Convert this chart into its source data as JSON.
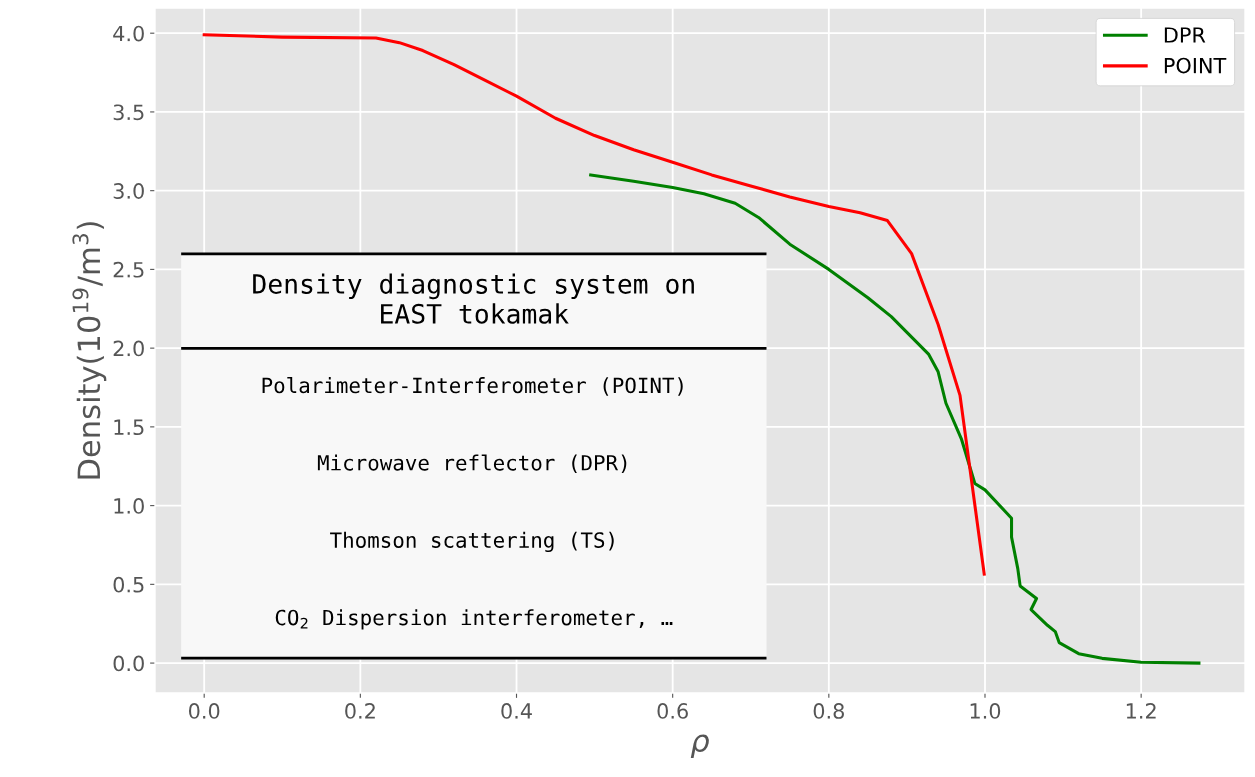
{
  "chart_data": {
    "type": "line",
    "xlabel": "ρ",
    "ylabel": "Density(10$^{19}$/m$^{3}$)",
    "xlim": [
      -0.063,
      1.333
    ],
    "ylim": [
      -0.19,
      4.16
    ],
    "xticks": [
      {
        "value": 0,
        "label": "0.0"
      },
      0.2,
      0.4,
      0.6,
      0.8,
      {
        "value": 1,
        "label": "1.0"
      },
      1.2
    ],
    "yticks": [
      {
        "value": 0,
        "label": "0.0"
      },
      0.5,
      {
        "value": 1,
        "label": "1.0"
      },
      1.5,
      {
        "value": 2,
        "label": "2.0"
      },
      2.5,
      {
        "value": 3,
        "label": "3.0"
      },
      3.5,
      {
        "value": 4,
        "label": "4.0"
      }
    ],
    "grid": true,
    "legend": "top right",
    "marker": "none",
    "line_style": "solid",
    "series": [
      {
        "name": "DPR",
        "color": "#008000",
        "x": [
          0.495,
          0.55,
          0.6,
          0.64,
          0.68,
          0.71,
          0.75,
          0.8,
          0.85,
          0.88,
          0.9,
          0.928,
          0.94,
          0.95,
          0.97,
          0.987,
          1.0,
          1.034,
          1.034,
          1.042,
          1.045,
          1.066,
          1.059,
          1.08,
          1.09,
          1.095,
          1.12,
          1.15,
          1.2,
          1.274
        ],
        "values": [
          3.1,
          3.06,
          3.02,
          2.98,
          2.92,
          2.83,
          2.66,
          2.5,
          2.32,
          2.2,
          2.1,
          1.96,
          1.85,
          1.65,
          1.42,
          1.14,
          1.1,
          0.92,
          0.8,
          0.6,
          0.49,
          0.41,
          0.34,
          0.24,
          0.2,
          0.13,
          0.06,
          0.03,
          0.005,
          0.0
        ]
      },
      {
        "name": "POINT",
        "color": "#ff0000",
        "x": [
          0.0,
          0.1,
          0.22,
          0.25,
          0.28,
          0.32,
          0.36,
          0.4,
          0.45,
          0.5,
          0.55,
          0.6,
          0.65,
          0.7,
          0.75,
          0.8,
          0.84,
          0.875,
          0.906,
          0.94,
          0.968,
          0.999
        ],
        "values": [
          3.99,
          3.975,
          3.97,
          3.94,
          3.89,
          3.8,
          3.7,
          3.6,
          3.46,
          3.35,
          3.26,
          3.18,
          3.1,
          3.03,
          2.96,
          2.9,
          2.86,
          2.81,
          2.6,
          2.15,
          1.7,
          0.565
        ]
      }
    ],
    "annotations": [
      "Density diagnostic system on\nEAST tokamak",
      "Polarimeter-Interferometer (POINT)",
      "Microwave reflector (DPR)",
      "Thomson scattering (TS)",
      "CO$_{2}$ Dispersion interferometer, …"
    ]
  }
}
